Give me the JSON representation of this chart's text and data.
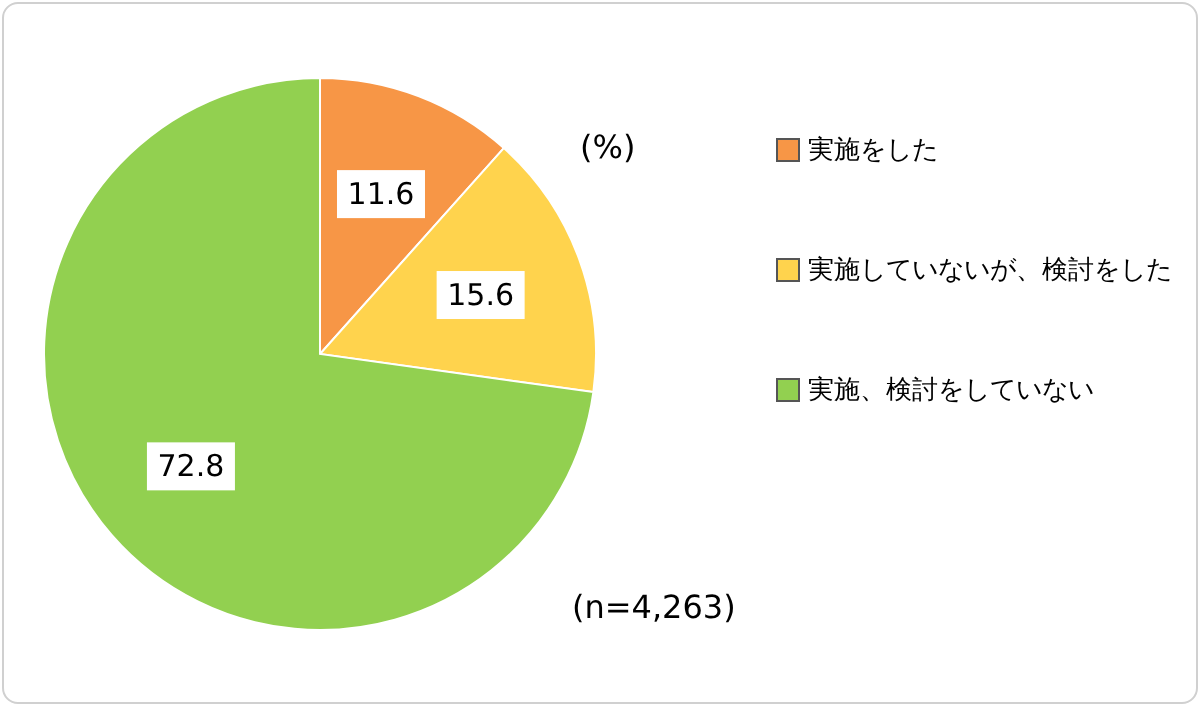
{
  "chart_data": {
    "type": "pie",
    "categories": [
      "実施をした",
      "実施していないが、検討をした",
      "実施、検討をしていない"
    ],
    "values": [
      11.6,
      15.6,
      72.8
    ],
    "colors": [
      "#f79646",
      "#ffd34d",
      "#92d050"
    ],
    "data_labels": true,
    "legend": "right",
    "annotations": [
      "(%)",
      "(n=4,263)"
    ]
  }
}
